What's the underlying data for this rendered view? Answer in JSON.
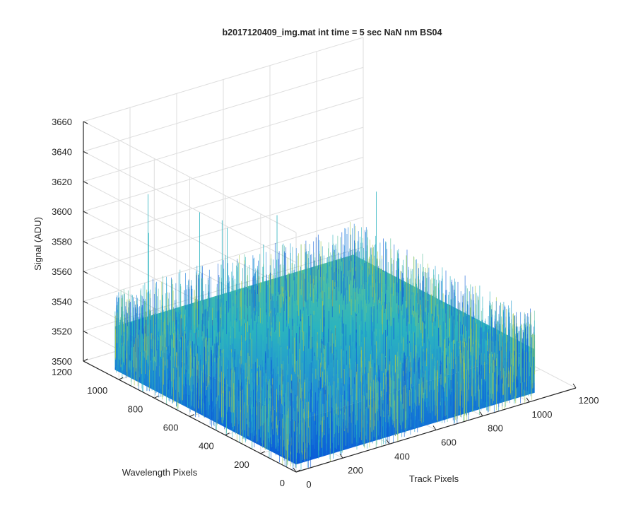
{
  "chart_data": {
    "type": "surface",
    "title": "b2017120409_img.mat int time = 5 sec  NaN nm BS04",
    "xlabel": "Track Pixels",
    "ylabel": "Wavelength Pixels",
    "zlabel": "Signal (ADU)",
    "xlim": [
      0,
      1200
    ],
    "ylim": [
      0,
      1200
    ],
    "zlim": [
      3500,
      3660
    ],
    "xticks": [
      0,
      200,
      400,
      600,
      800,
      1000,
      1200
    ],
    "yticks": [
      0,
      200,
      400,
      600,
      800,
      1000,
      1200
    ],
    "zticks": [
      3500,
      3520,
      3540,
      3560,
      3580,
      3600,
      3620,
      3640,
      3660
    ],
    "grid": true,
    "surface": {
      "x_extent": [
        1,
        1024
      ],
      "y_extent": [
        1,
        1024
      ],
      "mean_signal": 3530,
      "typical_range": [
        3505,
        3575
      ],
      "max_spike": 3620,
      "colormap": [
        "#0a5bd8",
        "#1c7fdc",
        "#1f9ad0",
        "#2ab3bf",
        "#59c19b",
        "#a6c94d"
      ]
    }
  }
}
